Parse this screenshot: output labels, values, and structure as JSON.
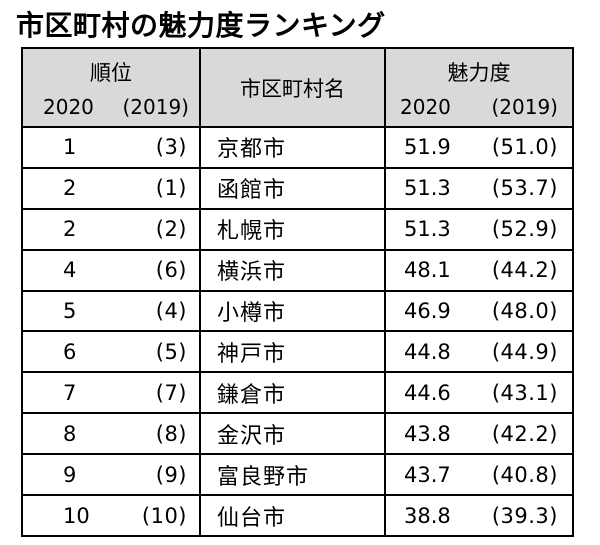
{
  "title": "市区町村の魅力度ランキング",
  "headers": {
    "rank": "順位",
    "rank_2020": "2020",
    "rank_2019": "(2019)",
    "name": "市区町村名",
    "score": "魅力度",
    "score_2020": "2020",
    "score_2019": "(2019)"
  },
  "rows": [
    {
      "rank": "1",
      "prev_rank": "(3)",
      "name": "京都市",
      "score": "51.9",
      "prev_score": "(51.0)"
    },
    {
      "rank": "2",
      "prev_rank": "(1)",
      "name": "函館市",
      "score": "51.3",
      "prev_score": "(53.7)"
    },
    {
      "rank": "2",
      "prev_rank": "(2)",
      "name": "札幌市",
      "score": "51.3",
      "prev_score": "(52.9)"
    },
    {
      "rank": "4",
      "prev_rank": "(6)",
      "name": "横浜市",
      "score": "48.1",
      "prev_score": "(44.2)"
    },
    {
      "rank": "5",
      "prev_rank": "(4)",
      "name": "小樽市",
      "score": "46.9",
      "prev_score": "(48.0)"
    },
    {
      "rank": "6",
      "prev_rank": "(5)",
      "name": "神戸市",
      "score": "44.8",
      "prev_score": "(44.9)"
    },
    {
      "rank": "7",
      "prev_rank": "(7)",
      "name": "鎌倉市",
      "score": "44.6",
      "prev_score": "(43.1)"
    },
    {
      "rank": "8",
      "prev_rank": "(8)",
      "name": "金沢市",
      "score": "43.8",
      "prev_score": "(42.2)"
    },
    {
      "rank": "9",
      "prev_rank": "(9)",
      "name": "富良野市",
      "score": "43.7",
      "prev_score": "(40.8)"
    },
    {
      "rank": "10",
      "prev_rank": "(10)",
      "name": "仙台市",
      "score": "38.8",
      "prev_score": "(39.3)"
    }
  ]
}
